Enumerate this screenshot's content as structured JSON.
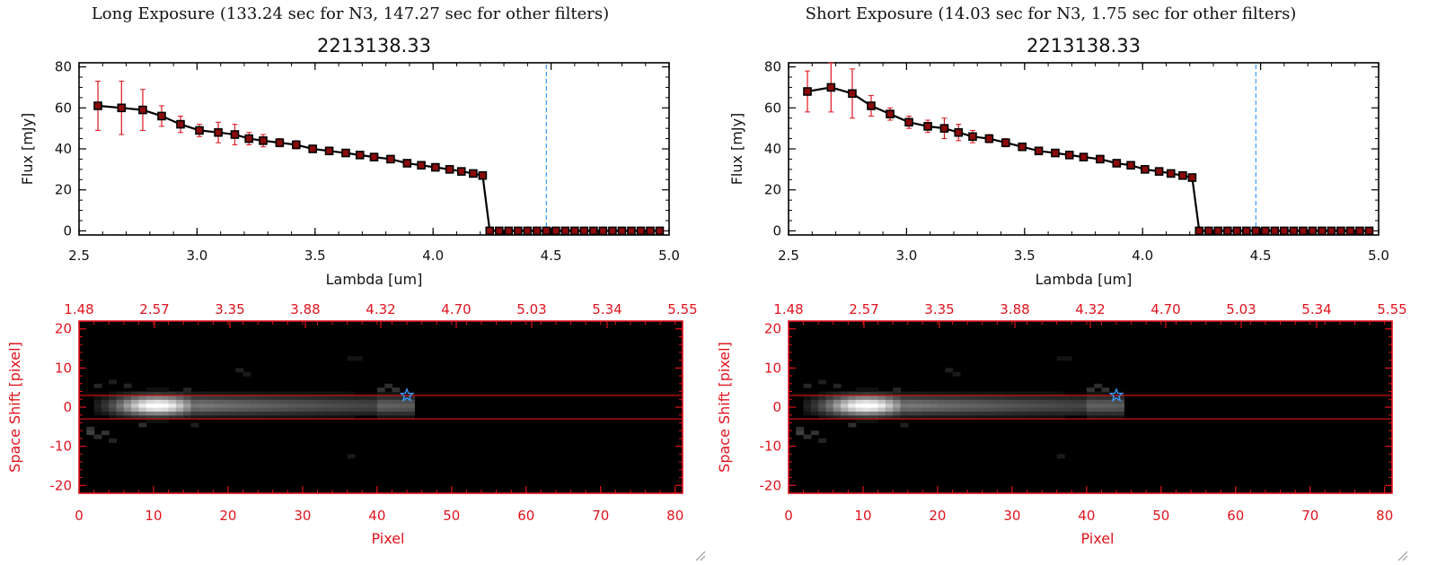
{
  "window": {
    "panels": [
      {
        "title": "Long Exposure (133.24 sec for N3, 147.27 sec for other filters)"
      },
      {
        "title": "Short Exposure (14.03 sec for N3, 1.75 sec for other filters)"
      }
    ]
  },
  "colors": {
    "axis": "#000000",
    "data_line": "#000000",
    "error_bar": "#e0141e",
    "marker_outline": "#000000",
    "marker_fill": "#8b0a0a",
    "vline": "#3b9bff",
    "image_axis": "#e0141e",
    "aperture_line": "#cc1010",
    "star": "#3b9bff"
  },
  "chart_data": [
    {
      "type": "line",
      "panel": "long",
      "title": "2213138.33",
      "xlabel": "Lambda [um]",
      "ylabel": "Flux [mJy]",
      "xlim": [
        2.5,
        5.0
      ],
      "ylim": [
        -2,
        82
      ],
      "xticks": [
        "2.5",
        "3.0",
        "3.5",
        "4.0",
        "4.5",
        "5.0"
      ],
      "yticks": [
        "0",
        "20",
        "40",
        "60",
        "80"
      ],
      "vline_x": 4.48,
      "series": [
        {
          "x": [
            2.58,
            2.68,
            2.77,
            2.85,
            2.93,
            3.01,
            3.09,
            3.16,
            3.22,
            3.28,
            3.35,
            3.42,
            3.49,
            3.56,
            3.63,
            3.69,
            3.75,
            3.82,
            3.89,
            3.95,
            4.01,
            4.07,
            4.12,
            4.17,
            4.21,
            4.24,
            4.28,
            4.32,
            4.36,
            4.4,
            4.44,
            4.48,
            4.52,
            4.56,
            4.6,
            4.64,
            4.68,
            4.72,
            4.76,
            4.8,
            4.84,
            4.88,
            4.92,
            4.96
          ],
          "y": [
            61,
            60,
            59,
            56,
            52,
            49,
            48,
            47,
            45,
            44,
            43,
            42,
            40,
            39,
            38,
            37,
            36,
            35,
            33,
            32,
            31,
            30,
            29,
            28,
            27,
            0,
            0,
            0,
            0,
            0,
            0,
            0,
            0,
            0,
            0,
            0,
            0,
            0,
            0,
            0,
            0,
            0,
            0,
            0
          ],
          "err": [
            12,
            13,
            10,
            5,
            4,
            3,
            5,
            5,
            3,
            3,
            2,
            2,
            1,
            1,
            1,
            1,
            1,
            1,
            1,
            1,
            1,
            1,
            1,
            1,
            1,
            0,
            0,
            0,
            0,
            0,
            0,
            0,
            0,
            0,
            0,
            0,
            0,
            0,
            0,
            0,
            0,
            0,
            0,
            0
          ]
        }
      ]
    },
    {
      "type": "heatmap",
      "panel": "long",
      "xlabel": "Pixel",
      "ylabel": "Space Shift [pixel]",
      "xlim": [
        0,
        81
      ],
      "ylim": [
        -22,
        22
      ],
      "xticks": [
        "0",
        "10",
        "20",
        "30",
        "40",
        "50",
        "60",
        "70",
        "80"
      ],
      "yticks": [
        "-20",
        "-10",
        "0",
        "10",
        "20"
      ],
      "top_ticks": [
        "1.48",
        "2.57",
        "3.35",
        "3.88",
        "4.32",
        "4.70",
        "5.03",
        "5.34",
        "5.55"
      ],
      "aperture_y": [
        3,
        -3
      ],
      "star": {
        "x": 44,
        "y": 3
      }
    },
    {
      "type": "line",
      "panel": "short",
      "title": "2213138.33",
      "xlabel": "Lambda [um]",
      "ylabel": "Flux [mJy]",
      "xlim": [
        2.5,
        5.0
      ],
      "ylim": [
        -2,
        82
      ],
      "xticks": [
        "2.5",
        "3.0",
        "3.5",
        "4.0",
        "4.5",
        "5.0"
      ],
      "yticks": [
        "0",
        "20",
        "40",
        "60",
        "80"
      ],
      "vline_x": 4.48,
      "series": [
        {
          "x": [
            2.58,
            2.68,
            2.77,
            2.85,
            2.93,
            3.01,
            3.09,
            3.16,
            3.22,
            3.28,
            3.35,
            3.42,
            3.49,
            3.56,
            3.63,
            3.69,
            3.75,
            3.82,
            3.89,
            3.95,
            4.01,
            4.07,
            4.12,
            4.17,
            4.21,
            4.24,
            4.28,
            4.32,
            4.36,
            4.4,
            4.44,
            4.48,
            4.52,
            4.56,
            4.6,
            4.64,
            4.68,
            4.72,
            4.76,
            4.8,
            4.84,
            4.88,
            4.92,
            4.96
          ],
          "y": [
            68,
            70,
            67,
            61,
            57,
            53,
            51,
            50,
            48,
            46,
            45,
            43,
            41,
            39,
            38,
            37,
            36,
            35,
            33,
            32,
            30,
            29,
            28,
            27,
            26,
            0,
            0,
            0,
            0,
            0,
            0,
            0,
            0,
            0,
            0,
            0,
            0,
            0,
            0,
            0,
            0,
            0,
            0,
            0
          ],
          "err": [
            10,
            12,
            12,
            5,
            3,
            3,
            3,
            5,
            4,
            3,
            2,
            2,
            1,
            1,
            1,
            1,
            1,
            1,
            1,
            1,
            1,
            1,
            1,
            1,
            1,
            0,
            0,
            0,
            0,
            0,
            0,
            0,
            0,
            0,
            0,
            0,
            0,
            0,
            0,
            0,
            0,
            0,
            0,
            0
          ]
        }
      ]
    },
    {
      "type": "heatmap",
      "panel": "short",
      "xlabel": "Pixel",
      "ylabel": "Space Shift [pixel]",
      "xlim": [
        0,
        81
      ],
      "ylim": [
        -22,
        22
      ],
      "xticks": [
        "0",
        "10",
        "20",
        "30",
        "40",
        "50",
        "60",
        "70",
        "80"
      ],
      "yticks": [
        "-20",
        "-10",
        "0",
        "10",
        "20"
      ],
      "top_ticks": [
        "1.48",
        "2.57",
        "3.35",
        "3.88",
        "4.32",
        "4.70",
        "5.03",
        "5.34",
        "5.55"
      ],
      "aperture_y": [
        3,
        -3
      ],
      "star": {
        "x": 44,
        "y": 3
      }
    }
  ]
}
